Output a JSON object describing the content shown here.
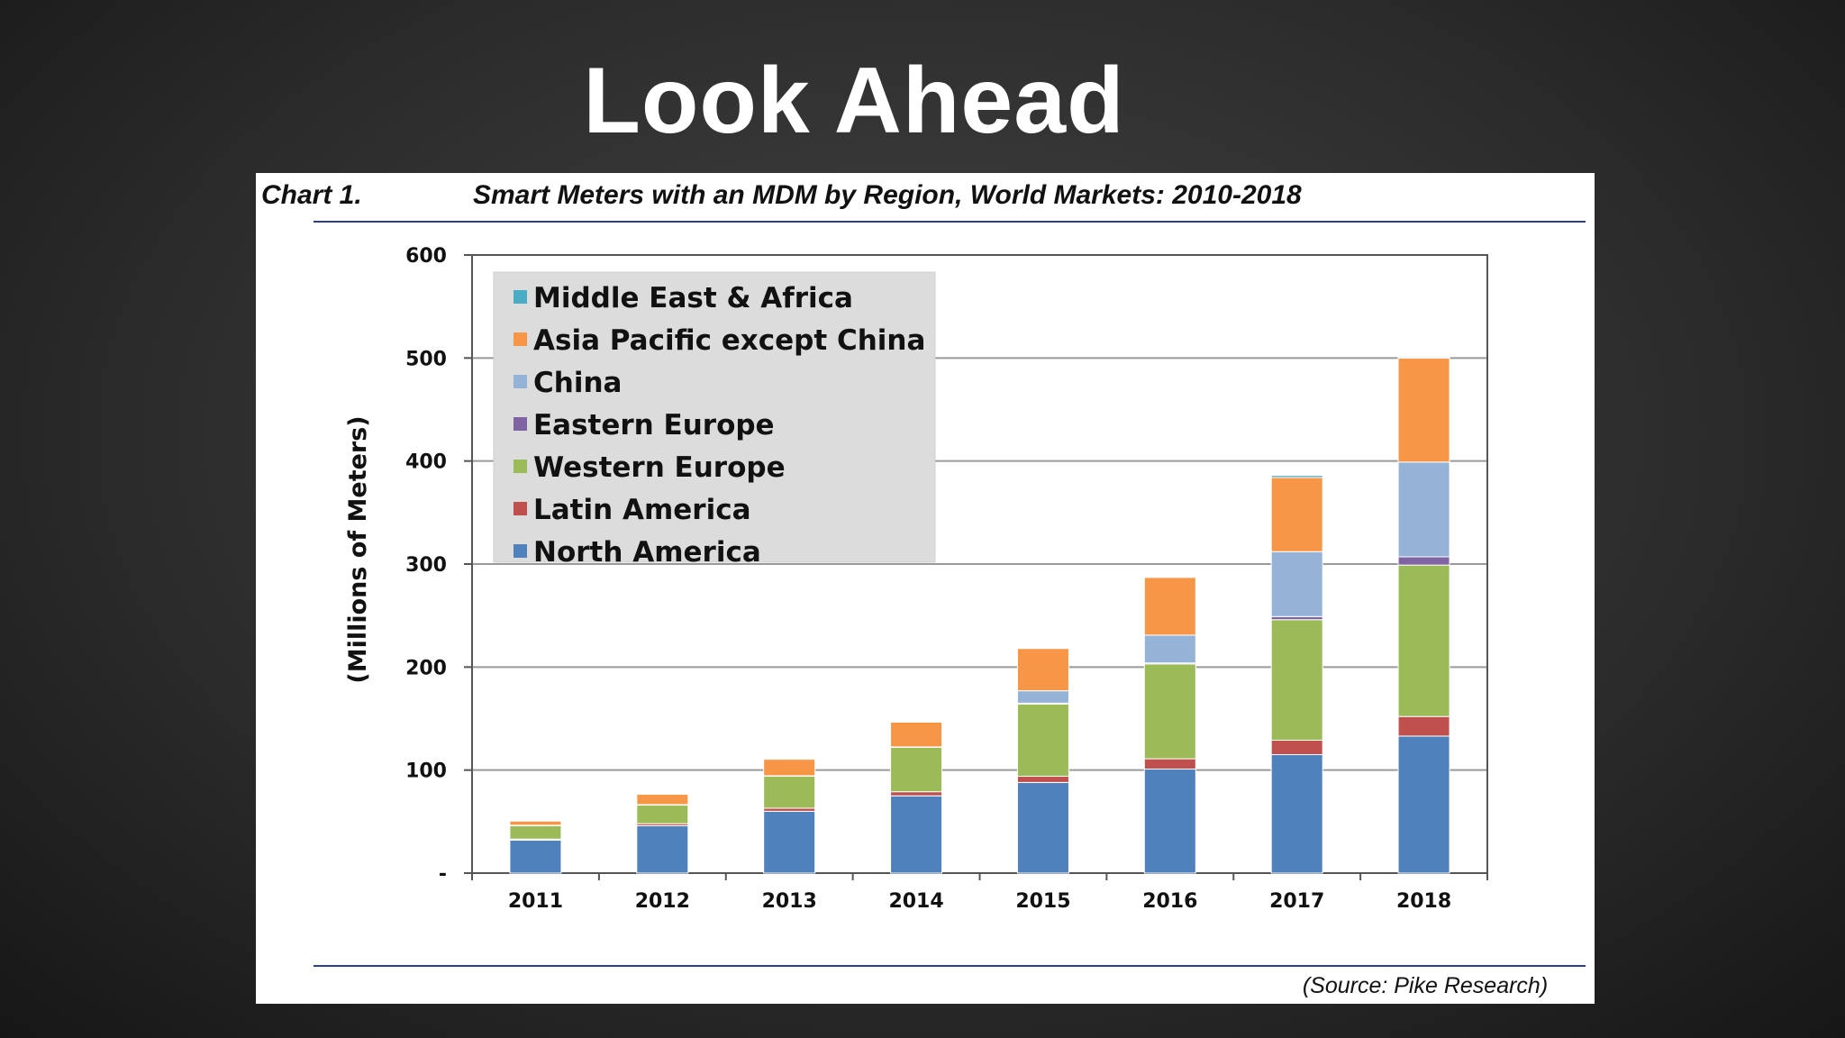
{
  "slide": {
    "title": "Look Ahead"
  },
  "chart_header": {
    "label": "Chart 1.",
    "title": "Smart Meters with an MDM by Region, World Markets: 2010-2018"
  },
  "source_note": "(Source: Pike Research)",
  "chart_data": {
    "type": "bar",
    "stacked": true,
    "categories": [
      "2011",
      "2012",
      "2013",
      "2014",
      "2015",
      "2016",
      "2017",
      "2018"
    ],
    "ylabel": "(Millions of Meters)",
    "ylim": [
      0,
      600
    ],
    "yticks": [
      {
        "value": 0,
        "label": "-"
      },
      {
        "value": 100,
        "label": "100"
      },
      {
        "value": 200,
        "label": "200"
      },
      {
        "value": 300,
        "label": "300"
      },
      {
        "value": 400,
        "label": "400"
      },
      {
        "value": 500,
        "label": "500"
      },
      {
        "value": 600,
        "label": "600"
      }
    ],
    "grid": true,
    "legend_position": "top-left",
    "series": [
      {
        "name": "North America",
        "color": "#4f81bd",
        "values": [
          32,
          46,
          60,
          75,
          88,
          101,
          115,
          133
        ]
      },
      {
        "name": "Latin America",
        "color": "#c0504d",
        "values": [
          1,
          2,
          3,
          4,
          6,
          10,
          14,
          19
        ]
      },
      {
        "name": "Western Europe",
        "color": "#9bbb59",
        "values": [
          13,
          18,
          31,
          43,
          70,
          92,
          117,
          147
        ]
      },
      {
        "name": "Eastern Europe",
        "color": "#8064a2",
        "values": [
          0.5,
          0.5,
          0.5,
          0.5,
          1,
          1,
          3,
          8
        ]
      },
      {
        "name": "China",
        "color": "#95b3d7",
        "values": [
          0,
          0,
          0,
          0,
          12,
          27,
          63,
          92
        ]
      },
      {
        "name": "Asia Pacific except China",
        "color": "#f79646",
        "values": [
          4,
          10,
          16,
          24,
          41,
          56,
          72,
          101
        ]
      },
      {
        "name": "Middle East & Africa",
        "color": "#4bacc6",
        "values": [
          0,
          0,
          0,
          0,
          0,
          0,
          2,
          1
        ]
      }
    ]
  }
}
